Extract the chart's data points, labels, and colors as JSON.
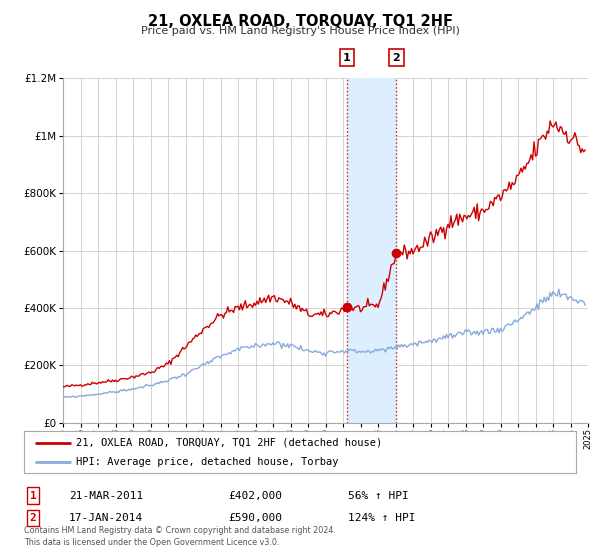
{
  "title": "21, OXLEA ROAD, TORQUAY, TQ1 2HF",
  "subtitle": "Price paid vs. HM Land Registry's House Price Index (HPI)",
  "legend_line1": "21, OXLEA ROAD, TORQUAY, TQ1 2HF (detached house)",
  "legend_line2": "HPI: Average price, detached house, Torbay",
  "line1_color": "#cc0000",
  "line2_color": "#88aadd",
  "transaction1_date": 2011.22,
  "transaction1_price": 402000,
  "transaction2_date": 2014.05,
  "transaction2_price": 590000,
  "transaction1_text": "21-MAR-2011",
  "transaction1_amount": "£402,000",
  "transaction1_hpi": "56% ↑ HPI",
  "transaction2_text": "17-JAN-2014",
  "transaction2_amount": "£590,000",
  "transaction2_hpi": "124% ↑ HPI",
  "xmin": 1995,
  "xmax": 2025,
  "ymin": 0,
  "ymax": 1200000,
  "yticks": [
    0,
    200000,
    400000,
    600000,
    800000,
    1000000,
    1200000
  ],
  "ytick_labels": [
    "£0",
    "£200K",
    "£400K",
    "£600K",
    "£800K",
    "£1M",
    "£1.2M"
  ],
  "footer": "Contains HM Land Registry data © Crown copyright and database right 2024.\nThis data is licensed under the Open Government Licence v3.0.",
  "background_color": "#ffffff",
  "grid_color": "#cccccc",
  "shaded_region_color": "#ddeeff"
}
